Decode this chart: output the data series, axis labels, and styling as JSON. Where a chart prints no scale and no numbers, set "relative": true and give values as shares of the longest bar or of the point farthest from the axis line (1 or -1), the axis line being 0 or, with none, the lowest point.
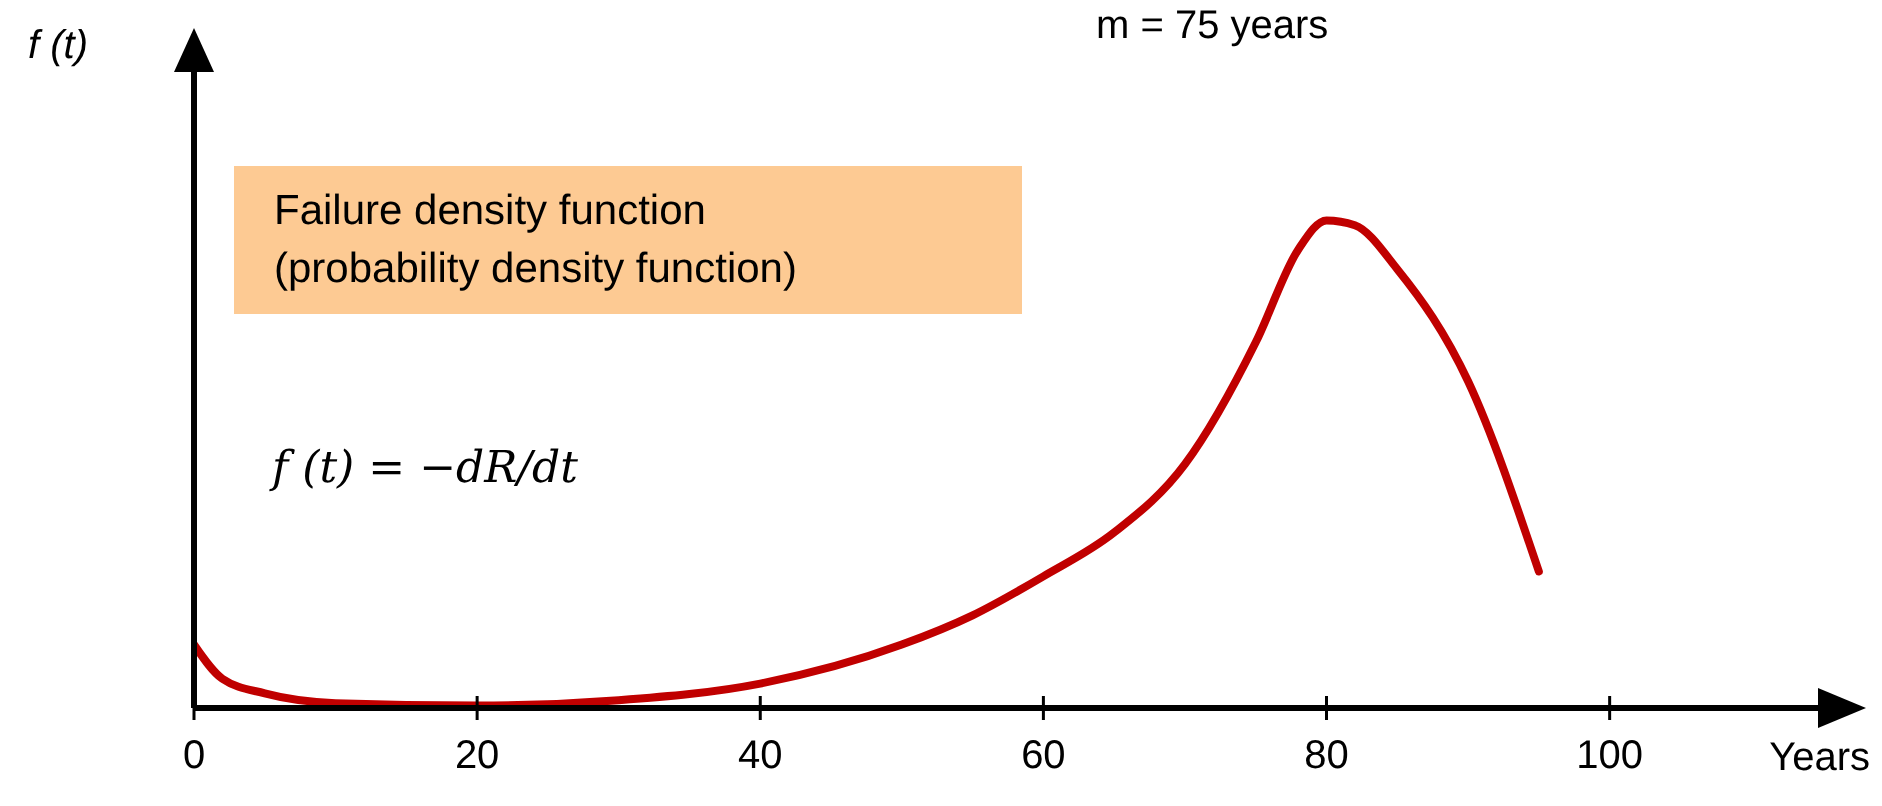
{
  "chart_data": {
    "type": "line",
    "xlabel": "Years",
    "ylabel": "f (t)",
    "relative": true,
    "x": [
      0,
      2,
      5,
      10,
      20,
      30,
      40,
      50,
      55,
      60,
      65,
      70,
      75,
      78,
      80,
      82,
      85,
      90,
      95
    ],
    "series": [
      {
        "color": "#c00000",
        "values": [
          0.13,
          0.06,
          0.03,
          0.01,
          0.005,
          0.016,
          0.05,
          0.13,
          0.19,
          0.27,
          0.36,
          0.5,
          0.75,
          0.94,
          1,
          0.99,
          0.9,
          0.67,
          0.28
        ]
      }
    ],
    "xlim": [
      0,
      115
    ],
    "xticks": [
      0,
      20,
      40,
      60,
      80,
      100
    ],
    "marker": "none",
    "line_style": "solid",
    "annotations": [
      "m = 75 years",
      "Failure density function\n(probability density function)",
      "f (t) = −dR/dt"
    ]
  }
}
